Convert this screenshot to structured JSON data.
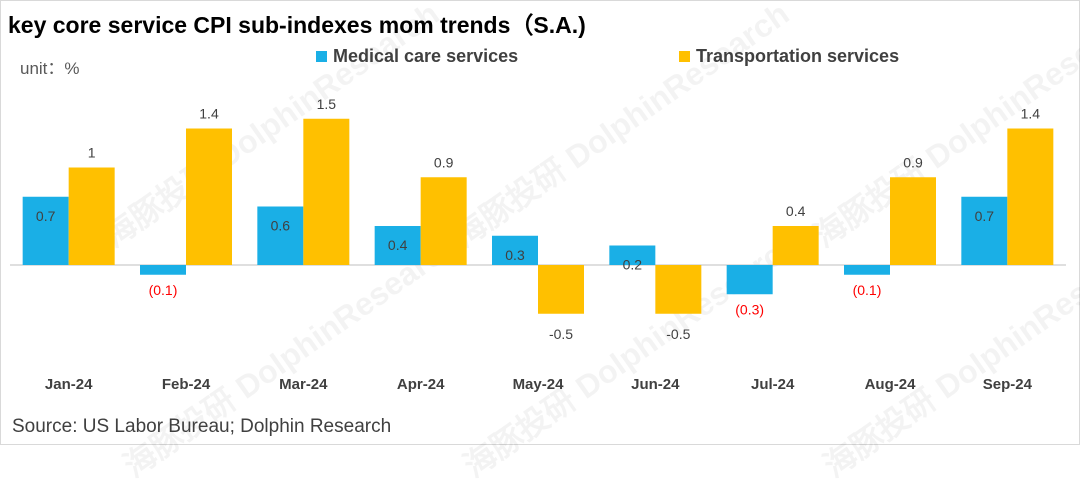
{
  "title": "key core service CPI sub-indexes mom trends（S.A.)",
  "unit": "unit：%",
  "source": "Source: US Labor Bureau; Dolphin Research",
  "watermark": "海豚投研 DolphinResearch",
  "colors": {
    "medical": "#1AAFE6",
    "transport": "#FFC000",
    "negative_label": "#FF0000",
    "axis": "#bfbfbf",
    "label": "#404040"
  },
  "chart_data": {
    "type": "bar",
    "title": "key core service CPI sub-indexes mom trends（S.A.)",
    "ylabel": "unit：%",
    "xlabel": "",
    "categories": [
      "Jan-24",
      "Feb-24",
      "Mar-24",
      "Apr-24",
      "May-24",
      "Jun-24",
      "Jul-24",
      "Aug-24",
      "Sep-24"
    ],
    "series": [
      {
        "name": "Medical care services",
        "values": [
          0.7,
          -0.1,
          0.6,
          0.4,
          0.3,
          0.2,
          -0.3,
          -0.1,
          0.7
        ],
        "labels": [
          "0.7",
          "(0.1)",
          "0.6",
          "0.4",
          "0.3",
          "0.2",
          "(0.3)",
          "(0.1)",
          "0.7"
        ]
      },
      {
        "name": "Transportation services",
        "values": [
          1.0,
          1.4,
          1.5,
          0.9,
          -0.5,
          -0.5,
          0.4,
          0.9,
          1.4
        ],
        "labels": [
          "1",
          "1.4",
          "1.5",
          "0.9",
          "-0.5",
          "-0.5",
          "0.4",
          "0.9",
          "1.4"
        ]
      }
    ],
    "ylim": [
      -0.6,
      1.6
    ],
    "legend_position": "top",
    "grid": false
  }
}
